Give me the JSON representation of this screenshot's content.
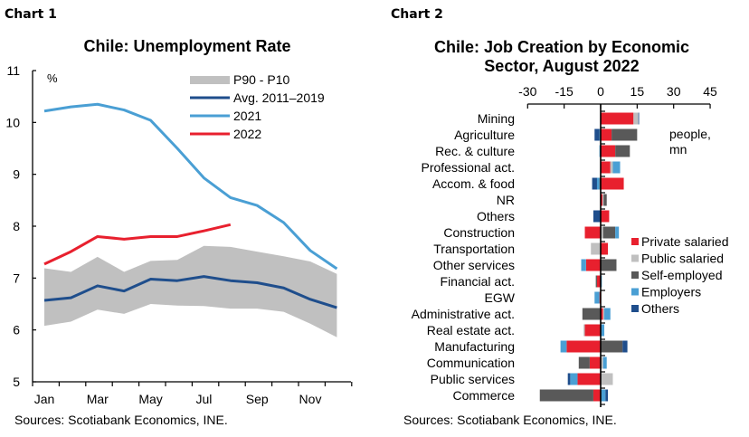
{
  "panel1": {
    "label": "Chart 1",
    "title": "Chile: Unemployment Rate",
    "unit": "%",
    "source": "Sources: Scotiabank Economics, INE."
  },
  "panel2": {
    "label": "Chart 2",
    "title_line1": "Chile: Job Creation by Economic",
    "title_line2": "Sector, August 2022",
    "unit_line1": "people,",
    "unit_line2": "mn",
    "source": "Sources: Scotiabank Economics, INE."
  },
  "chart_data": [
    {
      "type": "line",
      "title": "Chile: Unemployment Rate",
      "xlabel": "",
      "ylabel": "%",
      "ylim": [
        5,
        11
      ],
      "yticks": [
        5,
        6,
        7,
        8,
        9,
        10,
        11
      ],
      "x": [
        "Jan",
        "Feb",
        "Mar",
        "Apr",
        "May",
        "Jun",
        "Jul",
        "Aug",
        "Sep",
        "Oct",
        "Nov",
        "Dec"
      ],
      "xtick_labels": [
        "Jan",
        "Mar",
        "May",
        "Jul",
        "Sep",
        "Nov"
      ],
      "grid": false,
      "legend_position": "upper right",
      "band": {
        "name": "P90 - P10",
        "color": "#c0c0c0",
        "upper": [
          7.19,
          7.12,
          7.41,
          7.12,
          7.33,
          7.35,
          7.62,
          7.6,
          7.51,
          7.42,
          7.32,
          7.08
        ],
        "lower": [
          6.08,
          6.16,
          6.39,
          6.31,
          6.5,
          6.47,
          6.46,
          6.41,
          6.41,
          6.35,
          6.12,
          5.86
        ]
      },
      "series": [
        {
          "name": "Avg. 2011–2019",
          "color": "#1f4e8c",
          "values": [
            6.57,
            6.62,
            6.85,
            6.75,
            6.98,
            6.95,
            7.03,
            6.95,
            6.91,
            6.81,
            6.59,
            6.43
          ]
        },
        {
          "name": "2021",
          "color": "#4a9fd4",
          "values": [
            10.22,
            10.3,
            10.35,
            10.24,
            10.04,
            9.5,
            8.93,
            8.55,
            8.4,
            8.07,
            7.53,
            7.18
          ]
        },
        {
          "name": "2022",
          "color": "#e8202e",
          "values": [
            7.27,
            7.51,
            7.8,
            7.75,
            7.8,
            7.8,
            7.91,
            8.03
          ]
        }
      ]
    },
    {
      "type": "bar",
      "orientation": "horizontal",
      "stacked": true,
      "title": "Chile: Job Creation by Economic Sector, August 2022",
      "xlabel": "people, mn",
      "xlim": [
        -30,
        45
      ],
      "xticks": [
        -30,
        -15,
        0,
        15,
        30,
        45
      ],
      "grid": false,
      "legend_position": "right",
      "categories": [
        "Mining",
        "Agriculture",
        "Rec. & culture",
        "Professional act.",
        "Accom. & food",
        "NR",
        "Others",
        "Construction",
        "Transportation",
        "Other services",
        "Financial act.",
        "EGW",
        "Administrative act.",
        "Real estate act.",
        "Manufacturing",
        "Communication",
        "Public services",
        "Commerce"
      ],
      "series": [
        {
          "name": "Private salaried",
          "color": "#e8202e",
          "values": [
            13.5,
            4.5,
            6.0,
            4.0,
            9.5,
            0.8,
            3.5,
            -6.5,
            3.0,
            -6.0,
            -1.5,
            -0.5,
            1.0,
            -6.5,
            -14.0,
            -4.5,
            -9.5,
            -3.0
          ]
        },
        {
          "name": "Public salaried",
          "color": "#c0c0c0",
          "values": [
            2.0,
            0.0,
            0.0,
            1.0,
            0.0,
            0.4,
            0.0,
            1.0,
            -4.0,
            0.0,
            0.0,
            0.0,
            0.5,
            -0.5,
            0.0,
            1.0,
            5.0,
            0.0
          ]
        },
        {
          "name": "Self-employed",
          "color": "#595959",
          "values": [
            0.0,
            10.5,
            6.0,
            0.0,
            -0.5,
            1.3,
            0.0,
            5.0,
            0.0,
            6.5,
            -0.5,
            0.0,
            -7.5,
            0.0,
            9.0,
            -4.5,
            0.0,
            -22.0
          ]
        },
        {
          "name": "Employers",
          "color": "#4a9fd4",
          "values": [
            0.0,
            -0.5,
            -0.5,
            3.0,
            -1.0,
            0.0,
            0.0,
            1.5,
            0.0,
            -2.0,
            0.5,
            -2.0,
            2.5,
            1.5,
            -2.5,
            1.5,
            -3.0,
            2.0
          ]
        },
        {
          "name": "Others",
          "color": "#1f4e8c",
          "values": [
            0.3,
            -2.0,
            0.0,
            0.0,
            -2.0,
            0.0,
            -3.0,
            0.0,
            0.0,
            0.0,
            0.0,
            0.0,
            0.0,
            0.0,
            2.0,
            0.0,
            -1.0,
            1.0
          ]
        }
      ]
    }
  ]
}
